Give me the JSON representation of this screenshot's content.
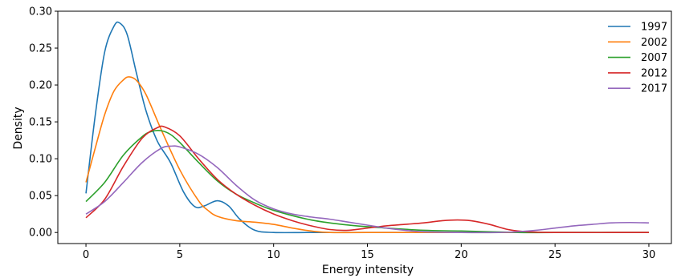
{
  "chart_data": {
    "type": "line",
    "xlabel": "Energy intensity",
    "ylabel": "Density",
    "xlim": [
      -1.5,
      31.2
    ],
    "ylim": [
      -0.015,
      0.3
    ],
    "xticks": [
      0,
      5,
      10,
      15,
      20,
      25,
      30
    ],
    "yticks": [
      0.0,
      0.05,
      0.1,
      0.15,
      0.2,
      0.25,
      0.3
    ],
    "grid": false,
    "legend_position": "top-right",
    "series": [
      {
        "name": "1997",
        "color": "#1f77b4",
        "x": [
          0,
          0.5,
          1,
          1.5,
          1.8,
          2.2,
          2.7,
          3.2,
          3.8,
          4.5,
          5.2,
          5.8,
          6.3,
          7,
          7.6,
          8.2,
          9,
          10,
          12,
          15,
          20,
          25,
          30
        ],
        "y": [
          0.053,
          0.16,
          0.245,
          0.28,
          0.284,
          0.268,
          0.215,
          0.165,
          0.124,
          0.095,
          0.055,
          0.035,
          0.036,
          0.043,
          0.036,
          0.018,
          0.003,
          0.0,
          0.0,
          0.0,
          0.0,
          0.0,
          0.0
        ]
      },
      {
        "name": "2002",
        "color": "#ff7f0e",
        "x": [
          0,
          0.5,
          1,
          1.5,
          2,
          2.3,
          2.7,
          3.2,
          4,
          5,
          6,
          6.5,
          7,
          8,
          9,
          10,
          11,
          12,
          13,
          15,
          20,
          25,
          30
        ],
        "y": [
          0.068,
          0.115,
          0.16,
          0.192,
          0.207,
          0.211,
          0.206,
          0.187,
          0.14,
          0.085,
          0.043,
          0.03,
          0.022,
          0.016,
          0.014,
          0.011,
          0.006,
          0.002,
          0.0,
          0.0,
          0.0,
          0.0,
          0.0
        ]
      },
      {
        "name": "2007",
        "color": "#2ca02c",
        "x": [
          0,
          1,
          2,
          3,
          3.5,
          4,
          4.5,
          5,
          6,
          7,
          8,
          9,
          10,
          12,
          14,
          16,
          18,
          20,
          23,
          25,
          30
        ],
        "y": [
          0.042,
          0.068,
          0.105,
          0.13,
          0.137,
          0.138,
          0.133,
          0.122,
          0.095,
          0.07,
          0.052,
          0.04,
          0.03,
          0.017,
          0.01,
          0.006,
          0.003,
          0.002,
          0.0,
          0.0,
          0.0
        ]
      },
      {
        "name": "2012",
        "color": "#d62728",
        "x": [
          0,
          1,
          2,
          3,
          3.8,
          4.2,
          5,
          6,
          7,
          8,
          9,
          10,
          11,
          12,
          13,
          14,
          15,
          16,
          17,
          18,
          19,
          19.8,
          20.5,
          21.5,
          22.5,
          23.5,
          25,
          30
        ],
        "y": [
          0.02,
          0.045,
          0.09,
          0.128,
          0.142,
          0.143,
          0.131,
          0.1,
          0.072,
          0.052,
          0.037,
          0.025,
          0.016,
          0.009,
          0.004,
          0.003,
          0.006,
          0.009,
          0.011,
          0.013,
          0.016,
          0.017,
          0.016,
          0.011,
          0.004,
          0.001,
          0.0,
          0.0
        ]
      },
      {
        "name": "2017",
        "color": "#9467bd",
        "x": [
          0,
          1,
          2,
          3,
          4,
          4.5,
          5,
          6,
          7,
          8,
          9,
          10,
          11,
          12,
          13,
          14,
          15,
          16,
          17,
          18,
          20,
          22,
          23,
          24,
          25,
          26,
          27,
          28,
          29,
          30
        ],
        "y": [
          0.025,
          0.042,
          0.068,
          0.095,
          0.114,
          0.117,
          0.116,
          0.106,
          0.088,
          0.064,
          0.044,
          0.032,
          0.025,
          0.021,
          0.018,
          0.014,
          0.01,
          0.006,
          0.003,
          0.001,
          0.0,
          0.0,
          0.001,
          0.003,
          0.006,
          0.009,
          0.011,
          0.013,
          0.0135,
          0.013
        ]
      }
    ]
  }
}
